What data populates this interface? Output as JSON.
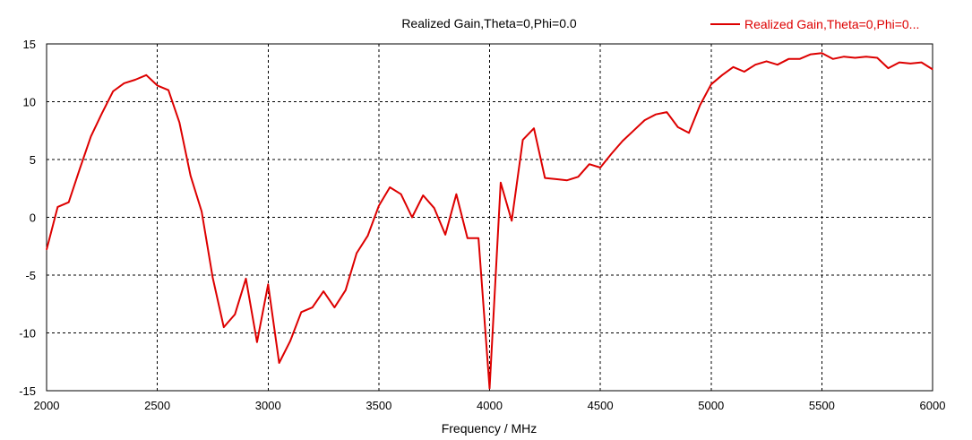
{
  "chart_data": {
    "type": "line",
    "title": "Realized Gain,Theta=0,Phi=0.0",
    "xlabel": "Frequency / MHz",
    "ylabel": "",
    "xlim": [
      2000,
      6000
    ],
    "ylim": [
      -15,
      15
    ],
    "xticks": [
      "2000",
      "2500",
      "3000",
      "3500",
      "4000",
      "4500",
      "5000",
      "5500",
      "6000"
    ],
    "yticks": [
      "15",
      "10",
      "5",
      "0",
      "-5",
      "-10",
      "-15"
    ],
    "grid": true,
    "legend_position": "top-right",
    "series": [
      {
        "name": "Realized Gain,Theta=0,Phi=0...",
        "color": "#dd0000",
        "points": [
          [
            2000,
            -2.8
          ],
          [
            2050,
            0.9
          ],
          [
            2100,
            1.3
          ],
          [
            2150,
            4.2
          ],
          [
            2200,
            7.0
          ],
          [
            2250,
            9.0
          ],
          [
            2300,
            10.9
          ],
          [
            2350,
            11.6
          ],
          [
            2400,
            11.9
          ],
          [
            2450,
            12.3
          ],
          [
            2500,
            11.4
          ],
          [
            2550,
            11.0
          ],
          [
            2600,
            8.2
          ],
          [
            2650,
            3.6
          ],
          [
            2700,
            0.5
          ],
          [
            2750,
            -5.2
          ],
          [
            2800,
            -9.5
          ],
          [
            2850,
            -8.4
          ],
          [
            2900,
            -5.3
          ],
          [
            2950,
            -10.8
          ],
          [
            3000,
            -5.8
          ],
          [
            3050,
            -12.6
          ],
          [
            3100,
            -10.7
          ],
          [
            3150,
            -8.2
          ],
          [
            3200,
            -7.8
          ],
          [
            3250,
            -6.4
          ],
          [
            3300,
            -7.8
          ],
          [
            3350,
            -6.3
          ],
          [
            3400,
            -3.1
          ],
          [
            3450,
            -1.6
          ],
          [
            3500,
            1.0
          ],
          [
            3550,
            2.6
          ],
          [
            3600,
            2.0
          ],
          [
            3650,
            0.0
          ],
          [
            3700,
            1.9
          ],
          [
            3750,
            0.8
          ],
          [
            3800,
            -1.5
          ],
          [
            3850,
            2.0
          ],
          [
            3900,
            -1.8
          ],
          [
            3950,
            -1.8
          ],
          [
            4000,
            -14.8
          ],
          [
            4050,
            3.0
          ],
          [
            4100,
            -0.3
          ],
          [
            4150,
            6.7
          ],
          [
            4200,
            7.7
          ],
          [
            4250,
            3.4
          ],
          [
            4300,
            3.3
          ],
          [
            4350,
            3.2
          ],
          [
            4400,
            3.5
          ],
          [
            4450,
            4.6
          ],
          [
            4500,
            4.3
          ],
          [
            4550,
            5.5
          ],
          [
            4600,
            6.6
          ],
          [
            4650,
            7.5
          ],
          [
            4700,
            8.4
          ],
          [
            4750,
            8.9
          ],
          [
            4800,
            9.1
          ],
          [
            4850,
            7.8
          ],
          [
            4900,
            7.3
          ],
          [
            4950,
            9.7
          ],
          [
            5000,
            11.5
          ],
          [
            5050,
            12.3
          ],
          [
            5100,
            13.0
          ],
          [
            5150,
            12.6
          ],
          [
            5200,
            13.2
          ],
          [
            5250,
            13.5
          ],
          [
            5300,
            13.2
          ],
          [
            5350,
            13.7
          ],
          [
            5400,
            13.7
          ],
          [
            5450,
            14.1
          ],
          [
            5500,
            14.2
          ],
          [
            5550,
            13.7
          ],
          [
            5600,
            13.9
          ],
          [
            5650,
            13.8
          ],
          [
            5700,
            13.9
          ],
          [
            5750,
            13.8
          ],
          [
            5800,
            12.9
          ],
          [
            5850,
            13.4
          ],
          [
            5900,
            13.3
          ],
          [
            5950,
            13.4
          ],
          [
            6000,
            12.8
          ]
        ]
      }
    ]
  }
}
